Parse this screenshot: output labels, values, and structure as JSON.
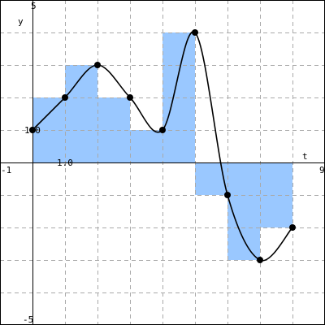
{
  "chart_data": {
    "type": "bar",
    "title": "",
    "xlabel": "t",
    "ylabel": "y",
    "xlim": [
      -1,
      9
    ],
    "ylim": [
      -5,
      5
    ],
    "grid": true,
    "x_tick_labels": {
      "min": "-1",
      "max": "9",
      "step": "1.0"
    },
    "y_tick_labels": {
      "min": "-5",
      "max": "5",
      "origin": "100"
    },
    "colors": {
      "bar_fill": "#9ac8ff",
      "curve": "#000000",
      "points": "#000000",
      "grid": "#a9a9a9",
      "axes": "#000000"
    },
    "series": [
      {
        "type": "step_bar",
        "bars": [
          {
            "x0": 0,
            "x1": 1,
            "value": 2
          },
          {
            "x0": 1,
            "x1": 2,
            "value": 3
          },
          {
            "x0": 2,
            "x1": 3,
            "value": 2
          },
          {
            "x0": 3,
            "x1": 4,
            "value": 1
          },
          {
            "x0": 4,
            "x1": 5,
            "value": 4
          },
          {
            "x0": 5,
            "x1": 6,
            "value": -1
          },
          {
            "x0": 6,
            "x1": 7,
            "value": -3
          },
          {
            "x0": 7,
            "x1": 8,
            "value": -2
          }
        ]
      },
      {
        "type": "line",
        "smooth": true,
        "points": [
          {
            "x": 0,
            "y": 1
          },
          {
            "x": 1,
            "y": 2
          },
          {
            "x": 2,
            "y": 3
          },
          {
            "x": 3,
            "y": 2
          },
          {
            "x": 4,
            "y": 1
          },
          {
            "x": 5,
            "y": 4
          },
          {
            "x": 6,
            "y": -1
          },
          {
            "x": 7,
            "y": -3
          },
          {
            "x": 8,
            "y": -2
          }
        ]
      }
    ]
  }
}
